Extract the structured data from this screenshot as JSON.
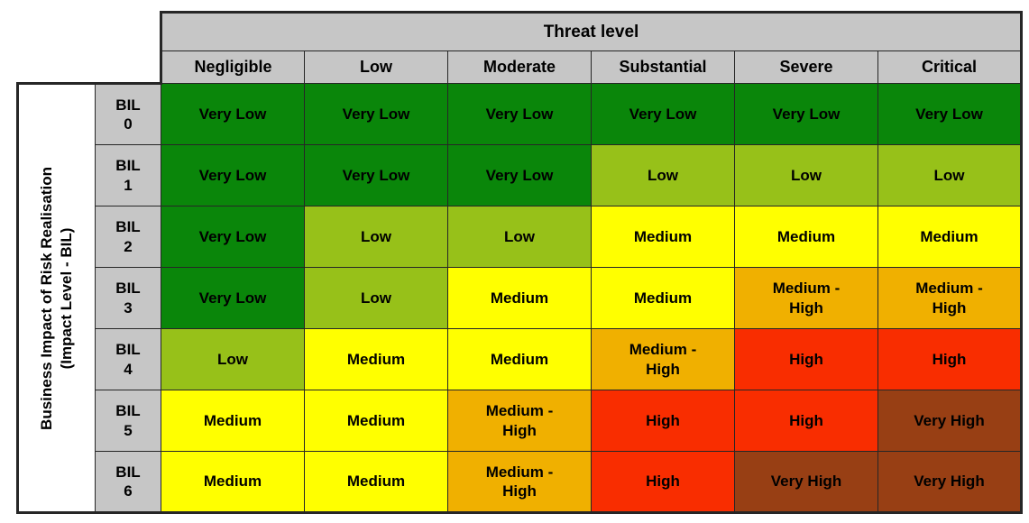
{
  "chart_data": {
    "type": "heatmap",
    "title": "Threat level",
    "x_categories": [
      "Negligible",
      "Low",
      "Moderate",
      "Substantial",
      "Severe",
      "Critical"
    ],
    "y_categories": [
      "BIL 0",
      "BIL 1",
      "BIL 2",
      "BIL 3",
      "BIL 4",
      "BIL 5",
      "BIL 6"
    ],
    "y_axis_label": "Business Impact of Risk Realisation (Impact Level - BIL)",
    "values": [
      [
        "Very Low",
        "Very Low",
        "Very Low",
        "Very Low",
        "Very Low",
        "Very Low"
      ],
      [
        "Very Low",
        "Very Low",
        "Very Low",
        "Low",
        "Low",
        "Low"
      ],
      [
        "Very Low",
        "Low",
        "Low",
        "Medium",
        "Medium",
        "Medium"
      ],
      [
        "Very Low",
        "Low",
        "Medium",
        "Medium",
        "Medium - High",
        "Medium - High"
      ],
      [
        "Low",
        "Medium",
        "Medium",
        "Medium - High",
        "High",
        "High"
      ],
      [
        "Medium",
        "Medium",
        "Medium - High",
        "High",
        "High",
        "Very High"
      ],
      [
        "Medium",
        "Medium",
        "Medium - High",
        "High",
        "Very High",
        "Very High"
      ]
    ],
    "legend_position": "none",
    "grid": true
  },
  "header": {
    "title": "Threat level"
  },
  "columns": [
    "Negligible",
    "Low",
    "Moderate",
    "Substantial",
    "Severe",
    "Critical"
  ],
  "side_label": {
    "line1": "Business Impact of Risk Realisation",
    "line2": "(Impact Level - BIL)"
  },
  "rows": [
    {
      "bil": "BIL\n0",
      "levels": [
        "very_low",
        "very_low",
        "very_low",
        "very_low",
        "very_low",
        "very_low"
      ]
    },
    {
      "bil": "BIL\n1",
      "levels": [
        "very_low",
        "very_low",
        "very_low",
        "low",
        "low",
        "low"
      ]
    },
    {
      "bil": "BIL\n2",
      "levels": [
        "very_low",
        "low",
        "low",
        "medium",
        "medium",
        "medium"
      ]
    },
    {
      "bil": "BIL\n3",
      "levels": [
        "very_low",
        "low",
        "medium",
        "medium",
        "medium_high",
        "medium_high"
      ]
    },
    {
      "bil": "BIL\n4",
      "levels": [
        "low",
        "medium",
        "medium",
        "medium_high",
        "high",
        "high"
      ]
    },
    {
      "bil": "BIL\n5",
      "levels": [
        "medium",
        "medium",
        "medium_high",
        "high",
        "high",
        "very_high"
      ]
    },
    {
      "bil": "BIL\n6",
      "levels": [
        "medium",
        "medium",
        "medium_high",
        "high",
        "very_high",
        "very_high"
      ]
    }
  ],
  "level_labels": {
    "very_low": "Very Low",
    "low": "Low",
    "medium": "Medium",
    "medium_high": "Medium -\nHigh",
    "high": "High",
    "very_high": "Very High"
  },
  "colors": {
    "very_low": "#0A860A",
    "low": "#97C119",
    "medium": "#FFFF00",
    "medium_high": "#F0B000",
    "high": "#F92D00",
    "very_high": "#983F14",
    "header_bg": "#C6C6C6",
    "border": "#262626",
    "text": "#000000"
  }
}
